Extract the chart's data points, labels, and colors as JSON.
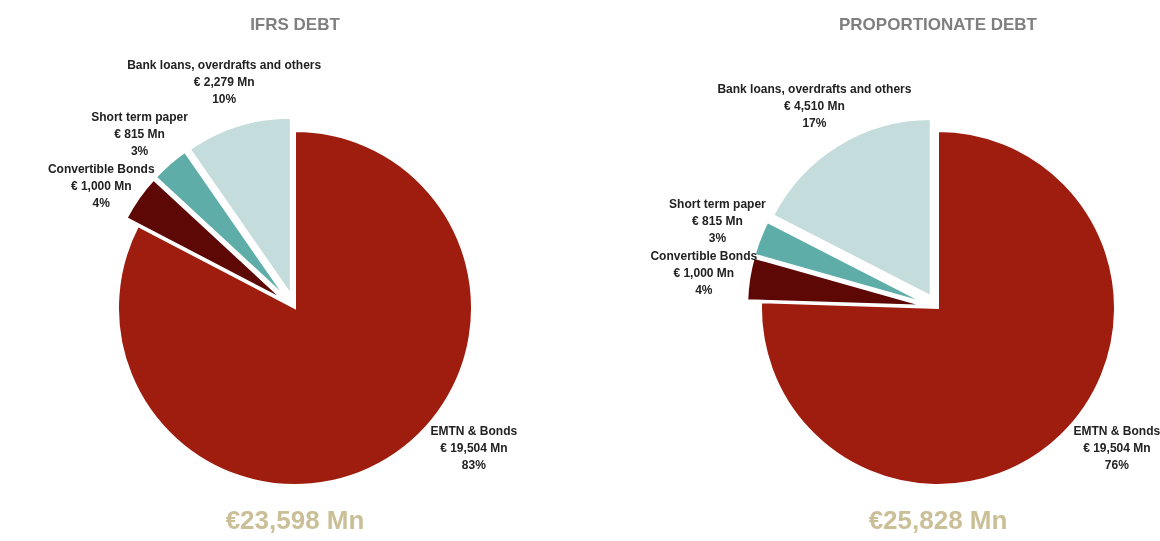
{
  "chart_data": [
    {
      "type": "pie",
      "title": "IFRS DEBT",
      "categories": [
        "EMTN & Bonds",
        "Convertible Bonds",
        "Short term paper",
        "Bank loans, overdrafts and others"
      ],
      "values": [
        19504,
        1000,
        815,
        2279
      ],
      "colors": [
        "#9e1d0e",
        "#5e0805",
        "#5fada9",
        "#c5dcdc"
      ],
      "value_labels": [
        "€ 19,504 Mn\n83%",
        "€ 1,000 Mn\n4%",
        "€ 815 Mn\n3%",
        "€ 2,279 Mn\n10%"
      ],
      "annotations": [
        "€23,598 Mn"
      ]
    },
    {
      "type": "pie",
      "title": "PROPORTIONATE DEBT",
      "categories": [
        "EMTN & Bonds",
        "Convertible Bonds",
        "Short term paper",
        "Bank loans, overdrafts and others"
      ],
      "values": [
        19504,
        1000,
        815,
        4510
      ],
      "colors": [
        "#9e1d0e",
        "#5e0805",
        "#5fada9",
        "#c5dcdc"
      ],
      "value_labels": [
        "€ 19,504 Mn\n76%",
        "€ 1,000 Mn\n4%",
        "€ 815 Mn\n3%",
        "€ 4,510 Mn\n17%"
      ],
      "annotations": [
        "€25,828 Mn"
      ]
    }
  ]
}
